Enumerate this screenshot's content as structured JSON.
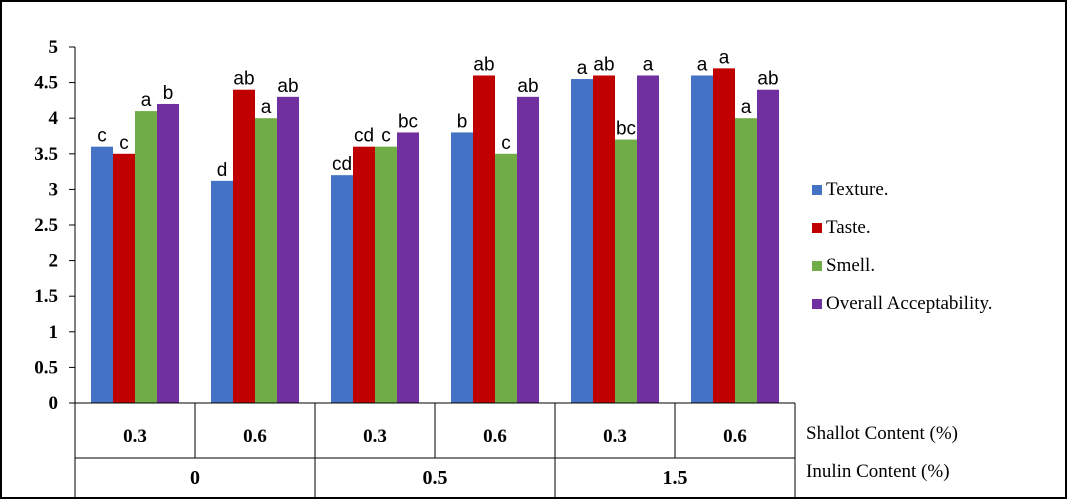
{
  "chart_data": {
    "type": "bar",
    "title": "",
    "ylim": [
      0,
      5
    ],
    "yticks": [
      "0",
      "0.5",
      "1",
      "1.5",
      "2",
      "2.5",
      "3",
      "3.5",
      "4",
      "4.5",
      "5"
    ],
    "grid": false,
    "legend_position": "right",
    "x_levels": [
      {
        "label": "Shallot Content (%)",
        "ticks": [
          "0.3",
          "0.6",
          "0.3",
          "0.6",
          "0.3",
          "0.6"
        ]
      },
      {
        "label": "Inulin Content (%)",
        "groups": [
          "0",
          "0.5",
          "1.5"
        ]
      }
    ],
    "series": [
      {
        "name": "Texture.",
        "color": "#4472C4",
        "values": [
          3.6,
          3.12,
          3.2,
          3.8,
          4.55,
          4.6
        ],
        "labels": [
          "c",
          "d",
          "cd",
          "b",
          "a",
          "a"
        ]
      },
      {
        "name": "Taste.",
        "color": "#C00000",
        "values": [
          3.5,
          4.4,
          3.6,
          4.6,
          4.6,
          4.7
        ],
        "labels": [
          "c",
          "ab",
          "cd",
          "ab",
          "ab",
          "a"
        ]
      },
      {
        "name": "Smell.",
        "color": "#70AD47",
        "values": [
          4.1,
          4.0,
          3.6,
          3.5,
          3.7,
          4.0
        ],
        "labels": [
          "a",
          "a",
          "c",
          "c",
          "bc",
          "a"
        ]
      },
      {
        "name": "Overall Acceptability.",
        "color": "#7030A0",
        "values": [
          4.2,
          4.3,
          3.8,
          4.3,
          4.6,
          4.4
        ],
        "labels": [
          "b",
          "ab",
          "bc",
          "ab",
          "a",
          "ab"
        ]
      }
    ]
  }
}
